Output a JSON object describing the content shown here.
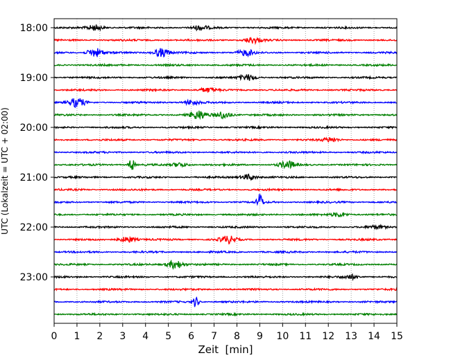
{
  "chart_data": {
    "type": "line",
    "title": "",
    "xlabel": "Zeit  [min]",
    "ylabel": "UTC (Lokalzeit = UTC + 02:00)",
    "xlim": [
      0,
      15
    ],
    "x_ticks": [
      "0",
      "1",
      "2",
      "3",
      "4",
      "5",
      "6",
      "7",
      "8",
      "9",
      "10",
      "11",
      "12",
      "13",
      "14",
      "15"
    ],
    "y_tick_labels": [
      "18:00",
      "19:00",
      "20:00",
      "21:00",
      "22:00",
      "23:00"
    ],
    "grid": "vertical dotted lines at each minute",
    "legend": "none",
    "trace_interval_minutes": 15,
    "trace_colors": [
      "#000000",
      "#ff0000",
      "#0000ff",
      "#008000"
    ],
    "traces": [
      {
        "start": "18:00",
        "color": "#000000",
        "events": [
          {
            "t": 1.8,
            "amp": 4
          },
          {
            "t": 6.4,
            "amp": 3
          }
        ]
      },
      {
        "start": "18:15",
        "color": "#ff0000",
        "events": [
          {
            "t": 8.7,
            "amp": 4
          }
        ]
      },
      {
        "start": "18:30",
        "color": "#0000ff",
        "events": [
          {
            "t": 1.8,
            "amp": 6
          },
          {
            "t": 4.7,
            "amp": 6
          },
          {
            "t": 8.4,
            "amp": 4
          }
        ]
      },
      {
        "start": "18:45",
        "color": "#008000",
        "events": []
      },
      {
        "start": "19:00",
        "color": "#000000",
        "events": [
          {
            "t": 8.5,
            "amp": 4
          }
        ]
      },
      {
        "start": "19:15",
        "color": "#ff0000",
        "events": [
          {
            "t": 6.7,
            "amp": 3
          }
        ]
      },
      {
        "start": "19:30",
        "color": "#0000ff",
        "events": [
          {
            "t": 1.0,
            "amp": 6
          },
          {
            "t": 6.0,
            "amp": 3
          }
        ]
      },
      {
        "start": "19:45",
        "color": "#008000",
        "events": [
          {
            "t": 6.3,
            "amp": 6
          },
          {
            "t": 7.4,
            "amp": 5
          }
        ]
      },
      {
        "start": "20:00",
        "color": "#000000",
        "events": []
      },
      {
        "start": "20:15",
        "color": "#ff0000",
        "events": [
          {
            "t": 12.1,
            "amp": 3
          }
        ]
      },
      {
        "start": "20:30",
        "color": "#0000ff",
        "events": []
      },
      {
        "start": "20:45",
        "color": "#008000",
        "events": [
          {
            "t": 3.4,
            "amp": 9
          },
          {
            "t": 10.2,
            "amp": 5
          },
          {
            "t": 5.5,
            "amp": 3
          }
        ]
      },
      {
        "start": "21:00",
        "color": "#000000",
        "events": [
          {
            "t": 8.5,
            "amp": 4
          }
        ]
      },
      {
        "start": "21:15",
        "color": "#ff0000",
        "events": []
      },
      {
        "start": "21:30",
        "color": "#0000ff",
        "events": [
          {
            "t": 9.0,
            "amp": 13
          }
        ]
      },
      {
        "start": "21:45",
        "color": "#008000",
        "events": [
          {
            "t": 12.5,
            "amp": 3
          }
        ]
      },
      {
        "start": "22:00",
        "color": "#000000",
        "events": [
          {
            "t": 14.1,
            "amp": 2
          }
        ]
      },
      {
        "start": "22:15",
        "color": "#ff0000",
        "events": [
          {
            "t": 3.2,
            "amp": 4
          },
          {
            "t": 7.6,
            "amp": 5
          }
        ]
      },
      {
        "start": "22:30",
        "color": "#0000ff",
        "events": []
      },
      {
        "start": "22:45",
        "color": "#008000",
        "events": [
          {
            "t": 5.3,
            "amp": 6
          }
        ]
      },
      {
        "start": "23:00",
        "color": "#000000",
        "events": [
          {
            "t": 13.0,
            "amp": 3
          }
        ]
      },
      {
        "start": "23:15",
        "color": "#ff0000",
        "events": []
      },
      {
        "start": "23:30",
        "color": "#0000ff",
        "events": [
          {
            "t": 6.2,
            "amp": 8
          }
        ]
      },
      {
        "start": "23:45",
        "color": "#008000",
        "events": []
      }
    ]
  }
}
